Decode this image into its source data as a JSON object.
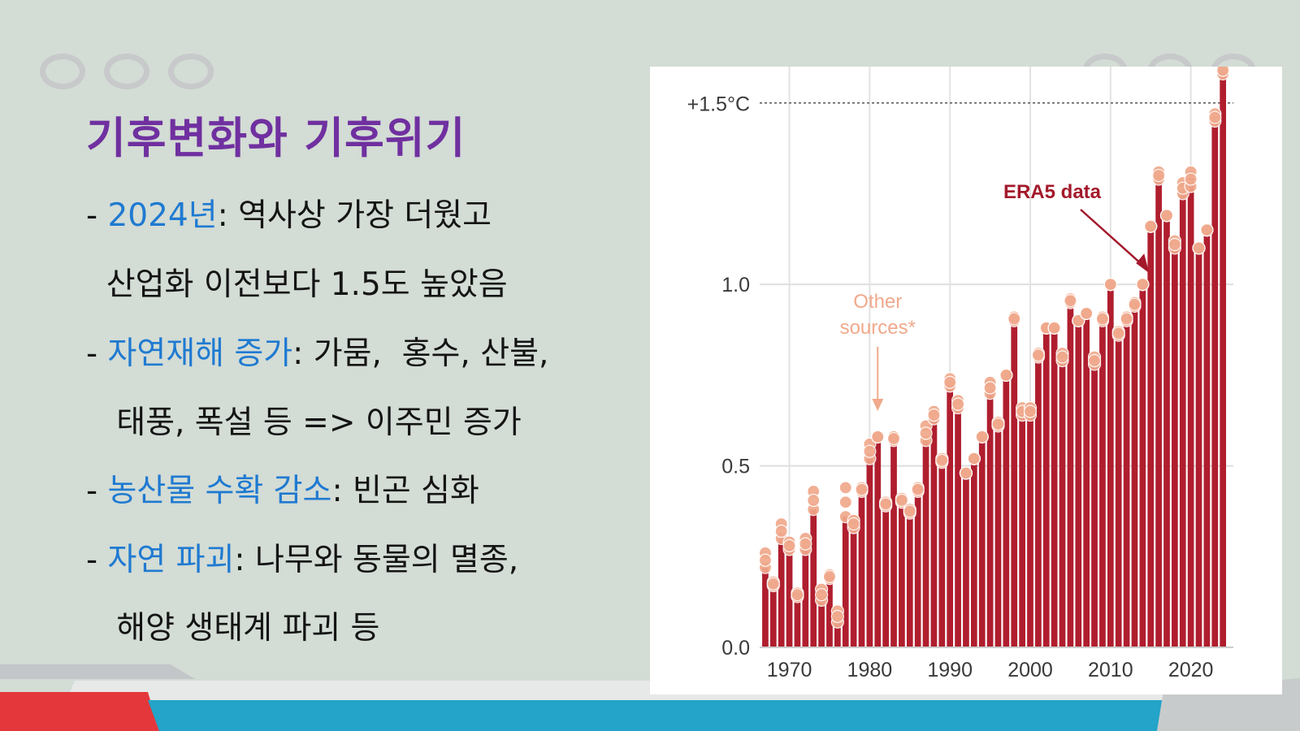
{
  "slide": {
    "title": "기후변화와 기후위기",
    "bullets": [
      {
        "dash": "- ",
        "highlight": "2024년",
        "text": ": 역사상 가장 더웠고"
      },
      {
        "dash": "",
        "highlight": "",
        "text": "  산업화 이전보다 1.5도 높았음"
      },
      {
        "dash": "- ",
        "highlight": "자연재해 증가",
        "text": ": 가뭄,  홍수, 산불,"
      },
      {
        "dash": "",
        "highlight": "",
        "text": "   태풍, 폭설 등 => 이주민 증가"
      },
      {
        "dash": "- ",
        "highlight": "농산물 수확 감소",
        "text": ": 빈곤 심화"
      },
      {
        "dash": "- ",
        "highlight": "자연 파괴",
        "text": ": 나무와 동물의 멸종,"
      },
      {
        "dash": "",
        "highlight": "",
        "text": "   해양 생태계 파괴 등"
      }
    ]
  },
  "colors": {
    "title": "#7030a0",
    "highlight": "#1f7ad1",
    "bar": "#b01e2e",
    "marker": "#f0a98c",
    "background": "#d3dcd5"
  },
  "chart_data": {
    "type": "bar",
    "x": [
      1967,
      1968,
      1969,
      1970,
      1971,
      1972,
      1973,
      1974,
      1975,
      1976,
      1977,
      1978,
      1979,
      1980,
      1981,
      1982,
      1983,
      1984,
      1985,
      1986,
      1987,
      1988,
      1989,
      1990,
      1991,
      1992,
      1993,
      1994,
      1995,
      1996,
      1997,
      1998,
      1999,
      2000,
      2001,
      2002,
      2003,
      2004,
      2005,
      2006,
      2007,
      2008,
      2009,
      2010,
      2011,
      2012,
      2013,
      2014,
      2015,
      2016,
      2017,
      2018,
      2019,
      2020,
      2021,
      2022,
      2023,
      2024
    ],
    "series": [
      {
        "name": "ERA5 data",
        "values": [
          0.22,
          0.18,
          0.3,
          0.27,
          0.15,
          0.27,
          0.38,
          0.13,
          0.2,
          0.07,
          0.36,
          0.33,
          0.43,
          0.52,
          0.58,
          0.39,
          0.57,
          0.4,
          0.37,
          0.43,
          0.57,
          0.63,
          0.51,
          0.74,
          0.66,
          0.48,
          0.52,
          0.58,
          0.7,
          0.61,
          0.75,
          0.9,
          0.64,
          0.64,
          0.8,
          0.88,
          0.88,
          0.79,
          0.95,
          0.9,
          0.92,
          0.78,
          0.9,
          1.0,
          0.86,
          0.9,
          0.95,
          1.0,
          1.16,
          1.31,
          1.19,
          1.1,
          1.28,
          1.31,
          1.1,
          1.15,
          1.47,
          1.6
        ]
      },
      {
        "name": "Other sources*",
        "values": [
          0.26,
          0.17,
          0.34,
          0.29,
          0.14,
          0.3,
          0.43,
          0.16,
          0.19,
          0.1,
          0.44,
          0.35,
          0.44,
          0.56,
          0.58,
          0.4,
          0.58,
          0.41,
          0.38,
          0.44,
          0.61,
          0.65,
          0.52,
          0.72,
          0.68,
          0.48,
          0.52,
          0.58,
          0.73,
          0.62,
          0.75,
          0.91,
          0.66,
          0.66,
          0.81,
          0.88,
          0.88,
          0.81,
          0.96,
          0.9,
          0.92,
          0.8,
          0.91,
          1.0,
          0.87,
          0.91,
          0.94,
          1.0,
          1.16,
          1.29,
          1.19,
          1.12,
          1.25,
          1.27,
          1.1,
          1.15,
          1.45,
          1.58
        ]
      }
    ],
    "yticks": [
      0.0,
      0.5,
      1.0
    ],
    "ytick_labels": [
      "0.0",
      "0.5",
      "1.0"
    ],
    "xticks": [
      1970,
      1980,
      1990,
      2000,
      2010,
      2020
    ],
    "xtick_labels": [
      "1970",
      "1980",
      "1990",
      "2000",
      "2010",
      "2020"
    ],
    "threshold": {
      "value": 1.5,
      "label": "+1.5°C"
    },
    "ylim": [
      0,
      1.6
    ],
    "xlim": [
      1966.3,
      2025.3
    ],
    "grid": true,
    "annotations": [
      {
        "text": "ERA5 data",
        "color": "#a3192b",
        "points_to": 2015
      },
      {
        "text": "Other\nsources*",
        "color": "#f0a98c",
        "points_to": 1981
      }
    ],
    "title": "",
    "xlabel": "",
    "ylabel": ""
  }
}
